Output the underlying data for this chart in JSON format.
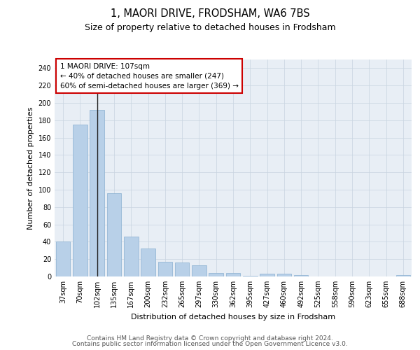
{
  "title": "1, MAORI DRIVE, FRODSHAM, WA6 7BS",
  "subtitle": "Size of property relative to detached houses in Frodsham",
  "xlabel": "Distribution of detached houses by size in Frodsham",
  "ylabel": "Number of detached properties",
  "categories": [
    "37sqm",
    "70sqm",
    "102sqm",
    "135sqm",
    "167sqm",
    "200sqm",
    "232sqm",
    "265sqm",
    "297sqm",
    "330sqm",
    "362sqm",
    "395sqm",
    "427sqm",
    "460sqm",
    "492sqm",
    "525sqm",
    "558sqm",
    "590sqm",
    "623sqm",
    "655sqm",
    "688sqm"
  ],
  "values": [
    40,
    175,
    192,
    96,
    46,
    32,
    17,
    16,
    13,
    4,
    4,
    1,
    3,
    3,
    2,
    0,
    0,
    0,
    0,
    0,
    2
  ],
  "bar_color": "#b8d0e8",
  "bar_edge_color": "#8ab0d0",
  "vline_x_index": 2,
  "vline_color": "#222222",
  "annotation_text": "1 MAORI DRIVE: 107sqm\n← 40% of detached houses are smaller (247)\n60% of semi-detached houses are larger (369) →",
  "annotation_box_color": "#ffffff",
  "annotation_box_edge": "#cc0000",
  "ylim": [
    0,
    250
  ],
  "yticks": [
    0,
    20,
    40,
    60,
    80,
    100,
    120,
    140,
    160,
    180,
    200,
    220,
    240
  ],
  "background_color": "#e8eef5",
  "footer_line1": "Contains HM Land Registry data © Crown copyright and database right 2024.",
  "footer_line2": "Contains public sector information licensed under the Open Government Licence v3.0.",
  "title_fontsize": 10.5,
  "subtitle_fontsize": 9,
  "axis_label_fontsize": 8,
  "tick_fontsize": 7,
  "annotation_fontsize": 7.5,
  "footer_fontsize": 6.5
}
